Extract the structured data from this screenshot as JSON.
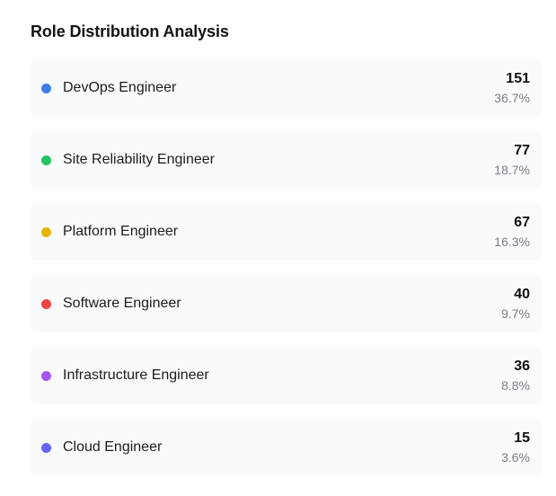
{
  "title": "Role Distribution Analysis",
  "roles": [
    {
      "label": "DevOps Engineer",
      "count": "151",
      "percent": "36.7%",
      "color": "#3b7ee8"
    },
    {
      "label": "Site Reliability Engineer",
      "count": "77",
      "percent": "18.7%",
      "color": "#22c55e"
    },
    {
      "label": "Platform Engineer",
      "count": "67",
      "percent": "16.3%",
      "color": "#eab308"
    },
    {
      "label": "Software Engineer",
      "count": "40",
      "percent": "9.7%",
      "color": "#ef4444"
    },
    {
      "label": "Infrastructure Engineer",
      "count": "36",
      "percent": "8.8%",
      "color": "#a855f7"
    },
    {
      "label": "Cloud Engineer",
      "count": "15",
      "percent": "3.6%",
      "color": "#6366f1"
    }
  ]
}
